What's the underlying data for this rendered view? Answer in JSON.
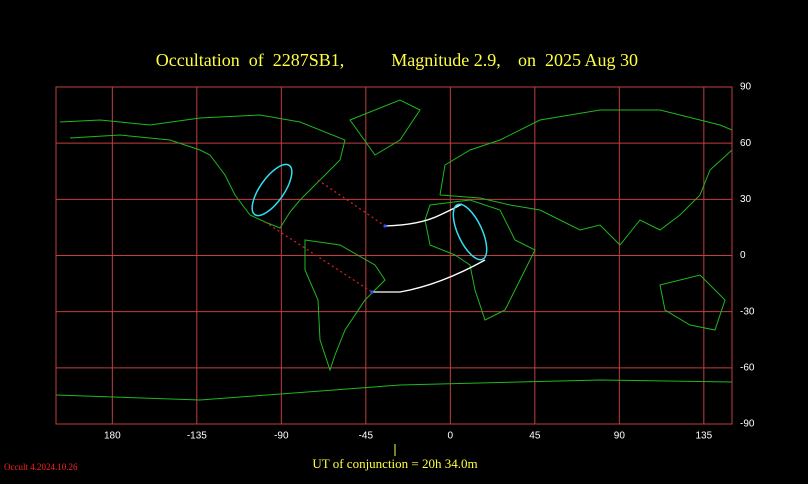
{
  "title": {
    "object": "Occultation  of  2287SB1,",
    "magnitude": "Magnitude 2.9,",
    "date": "on  2025 Aug 30"
  },
  "map": {
    "xlim": [
      -210,
      150
    ],
    "ylim": [
      -90,
      90
    ],
    "xticks": [
      {
        "value": -180,
        "label": "180"
      },
      -135,
      -90,
      -45,
      0,
      45,
      90,
      135
    ],
    "yticks": [
      90,
      60,
      30,
      0,
      -30,
      -60,
      -90
    ]
  },
  "caption": "UT of conjunction = 20h 34.0m",
  "version": "Occult 4.2024.10.26"
}
